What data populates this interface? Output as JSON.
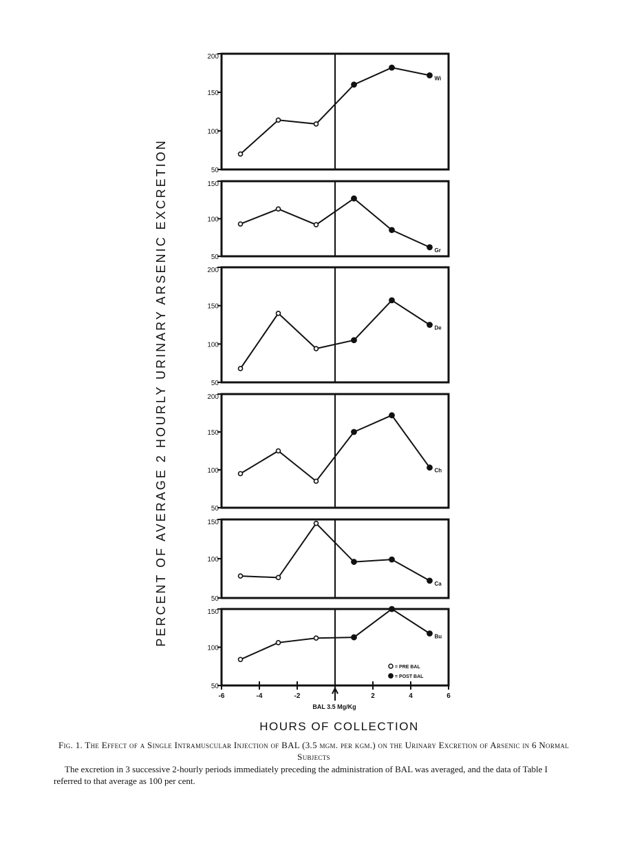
{
  "figure": {
    "ylabel": "PERCENT OF AVERAGE 2 HOURLY URINARY ARSENIC EXCRETION",
    "xlabel": "HOURS OF COLLECTION",
    "arrow_label": "BAL 3.5 Mg/Kg",
    "legend": {
      "pre": "= PRE BAL",
      "post": "= POST BAL"
    }
  },
  "chart_data": [
    {
      "type": "line",
      "subject": "Wi",
      "x": [
        -5,
        -3,
        -1,
        1,
        3,
        5
      ],
      "y": [
        70,
        114,
        109,
        160,
        182,
        172
      ],
      "ylim": [
        50,
        200
      ],
      "yticks": [
        50,
        100,
        150,
        200
      ],
      "xlim": [
        -6,
        6
      ],
      "marker_fill": [
        "open",
        "open",
        "open",
        "filled",
        "filled",
        "filled"
      ]
    },
    {
      "type": "line",
      "subject": "Gr",
      "x": [
        -5,
        -3,
        -1,
        1,
        3,
        5
      ],
      "y": [
        93,
        113,
        92,
        127,
        85,
        62
      ],
      "ylim": [
        50,
        150
      ],
      "yticks": [
        50,
        100,
        150
      ],
      "xlim": [
        -6,
        6
      ],
      "marker_fill": [
        "open",
        "open",
        "open",
        "filled",
        "filled",
        "filled"
      ]
    },
    {
      "type": "line",
      "subject": "De",
      "x": [
        -5,
        -3,
        -1,
        1,
        3,
        5
      ],
      "y": [
        68,
        140,
        94,
        105,
        157,
        125
      ],
      "ylim": [
        50,
        200
      ],
      "yticks": [
        50,
        100,
        150,
        200
      ],
      "xlim": [
        -6,
        6
      ],
      "marker_fill": [
        "open",
        "open",
        "open",
        "filled",
        "filled",
        "filled"
      ]
    },
    {
      "type": "line",
      "subject": "Ch",
      "x": [
        -5,
        -3,
        -1,
        1,
        3,
        5
      ],
      "y": [
        95,
        125,
        85,
        150,
        172,
        103
      ],
      "ylim": [
        50,
        200
      ],
      "yticks": [
        50,
        100,
        150,
        200
      ],
      "xlim": [
        -6,
        6
      ],
      "marker_fill": [
        "open",
        "open",
        "open",
        "filled",
        "filled",
        "filled"
      ]
    },
    {
      "type": "line",
      "subject": "Ca",
      "x": [
        -5,
        -3,
        -1,
        1,
        3,
        5
      ],
      "y": [
        78,
        76,
        145,
        96,
        99,
        72
      ],
      "ylim": [
        50,
        150
      ],
      "yticks": [
        50,
        100,
        150
      ],
      "xlim": [
        -6,
        6
      ],
      "marker_fill": [
        "open",
        "open",
        "open",
        "filled",
        "filled",
        "filled"
      ]
    },
    {
      "type": "line",
      "subject": "Bu",
      "x": [
        -5,
        -3,
        -1,
        1,
        3,
        5
      ],
      "y": [
        84,
        106,
        112,
        113,
        150,
        118
      ],
      "ylim": [
        50,
        150
      ],
      "yticks": [
        50,
        100,
        150
      ],
      "xlim": [
        -6,
        6
      ],
      "xticks": [
        -6,
        -4,
        -2,
        0,
        2,
        4,
        6
      ],
      "xticklabels": [
        "-6",
        "-4",
        "-2",
        "",
        "2",
        "4",
        "6"
      ],
      "marker_fill": [
        "open",
        "open",
        "open",
        "filled",
        "filled",
        "filled"
      ]
    }
  ],
  "caption": {
    "title": "Fig. 1.  The Effect of a Single Intramuscular Injection of BAL (3.5 mgm. per kgm.) on the Urinary Excretion of Arsenic in 6 Normal Subjects",
    "text": "The excretion in 3 successive 2-hourly periods immediately preceding the administration of BAL was averaged, and the data of Table I referred to that average as 100 per cent."
  }
}
